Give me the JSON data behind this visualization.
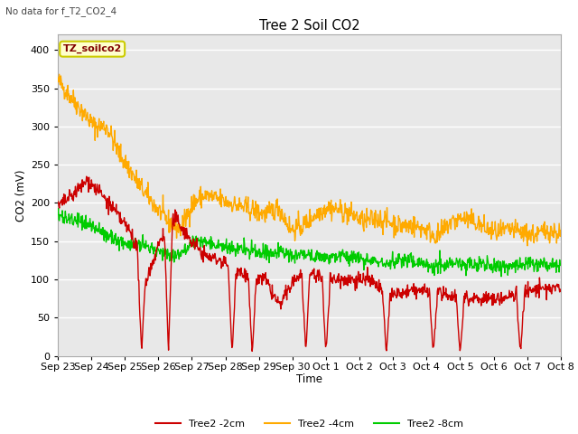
{
  "title": "Tree 2 Soil CO2",
  "subtitle": "No data for f_T2_CO2_4",
  "ylabel": "CO2 (mV)",
  "xlabel": "Time",
  "ylim": [
    0,
    420
  ],
  "background_color": "#ffffff",
  "plot_bg_color": "#e8e8e8",
  "grid_color": "#ffffff",
  "legend_label": "TZ_soilco2",
  "legend_bg": "#ffffcc",
  "legend_border": "#cccc00",
  "legend_text_color": "#800000",
  "x_tick_labels": [
    "Sep 23",
    "Sep 24",
    "Sep 25",
    "Sep 26",
    "Sep 27",
    "Sep 28",
    "Sep 29",
    "Sep 30",
    "Oct 1",
    "Oct 2",
    "Oct 3",
    "Oct 4",
    "Oct 5",
    "Oct 6",
    "Oct 7",
    "Oct 8"
  ],
  "series_labels": [
    "Tree2 -2cm",
    "Tree2 -4cm",
    "Tree2 -8cm"
  ],
  "series_colors": [
    "#cc0000",
    "#ffaa00",
    "#00cc00"
  ],
  "line_width": 1.0
}
